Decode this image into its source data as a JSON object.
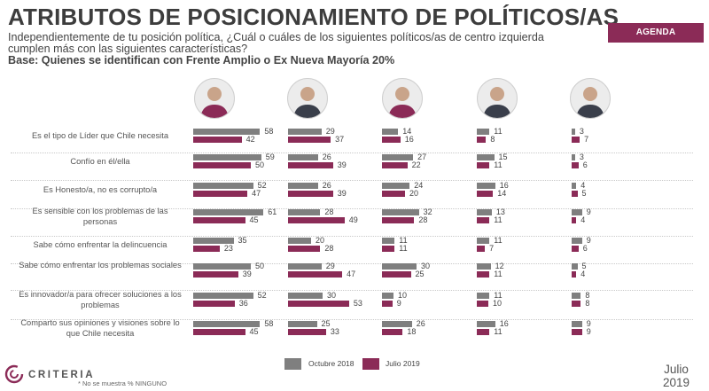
{
  "title": "ATRIBUTOS DE POSICIONAMIENTO DE POLÍTICOS/AS",
  "subtitle": "Independientemente de tu posición política, ¿Cuál o cuáles de los siguientes políticos/as de centro izquierda cumplen más con las siguientes características?",
  "base": "Base: Quienes se identifican con Frente Amplio o Ex Nueva Mayoría 20%",
  "badge": "AGENDA CIUDADANA",
  "brand": "CRITERIA",
  "footnote": "* No se muestra % NINGUNO",
  "date": {
    "month": "Julio",
    "year": "2019"
  },
  "colors": {
    "series_2018": "#7f7f7f",
    "series_2019": "#8b2b57",
    "badge_bg": "#8b2b57"
  },
  "politicians": [
    {
      "photo": "portrait-woman-short-hair",
      "icon": "politician-1-photo"
    },
    {
      "photo": "portrait-man-glasses",
      "icon": "politician-2-photo"
    },
    {
      "photo": "portrait-woman-blonde",
      "icon": "politician-3-photo"
    },
    {
      "photo": "portrait-man-gray-hair",
      "icon": "politician-4-photo"
    },
    {
      "photo": "portrait-man-suit",
      "icon": "politician-5-photo"
    }
  ],
  "chart_data": {
    "type": "bar",
    "orientation": "horizontal",
    "legend": [
      "Octubre 2018",
      "Julio 2019"
    ],
    "legend_position": "bottom",
    "grid": false,
    "categories": [
      "Es el tipo de Líder que Chile necesita",
      "Confío en él/ella",
      "Es Honesto/a, no es corrupto/a",
      "Es sensible con los problemas de las personas",
      "Sabe cómo enfrentar la delincuencia",
      "Sabe cómo enfrentar los problemas sociales",
      "Es innovador/a para ofrecer soluciones a los problemas",
      "Comparto sus opiniones y visiones sobre lo que Chile necesita"
    ],
    "groups": [
      {
        "politician": 1,
        "oct_2018": [
          58,
          59,
          52,
          61,
          35,
          50,
          52,
          58
        ],
        "jul_2019": [
          42,
          50,
          47,
          45,
          23,
          39,
          36,
          45
        ]
      },
      {
        "politician": 2,
        "oct_2018": [
          29,
          26,
          26,
          28,
          20,
          29,
          30,
          25
        ],
        "jul_2019": [
          37,
          39,
          39,
          49,
          28,
          47,
          53,
          33
        ]
      },
      {
        "politician": 3,
        "oct_2018": [
          14,
          27,
          24,
          32,
          11,
          30,
          10,
          26
        ],
        "jul_2019": [
          16,
          22,
          20,
          28,
          11,
          25,
          9,
          18
        ]
      },
      {
        "politician": 4,
        "oct_2018": [
          11,
          15,
          16,
          13,
          11,
          12,
          11,
          16
        ],
        "jul_2019": [
          8,
          11,
          14,
          11,
          7,
          11,
          10,
          11
        ]
      },
      {
        "politician": 5,
        "oct_2018": [
          3,
          3,
          4,
          9,
          9,
          5,
          8,
          9
        ],
        "jul_2019": [
          7,
          6,
          5,
          4,
          6,
          4,
          8,
          9
        ]
      }
    ]
  }
}
